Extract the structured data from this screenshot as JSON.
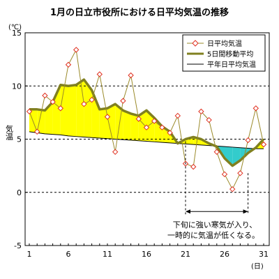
{
  "chart_data": {
    "type": "line",
    "title": "1月の日立市役所における日平均気温の推移",
    "unit_label": "(℃)",
    "ylabel": "気温",
    "xlabel": "(日)",
    "xlim": [
      1,
      31
    ],
    "ylim": [
      -5,
      15
    ],
    "x_ticks": [
      1,
      6,
      11,
      16,
      21,
      26,
      31
    ],
    "y_ticks": [
      -5,
      0,
      5,
      10,
      15
    ],
    "dashed_gridlines": [
      10,
      5,
      0
    ],
    "x": [
      1,
      2,
      3,
      4,
      5,
      6,
      7,
      8,
      9,
      10,
      11,
      12,
      13,
      14,
      15,
      16,
      17,
      18,
      19,
      20,
      21,
      22,
      23,
      24,
      25,
      26,
      27,
      28,
      29,
      30,
      31
    ],
    "series": [
      {
        "name": "日平均気温",
        "color": "#9a8a2a",
        "marker": "diamond",
        "marker_color": "#e03020",
        "values": [
          7.6,
          5.7,
          9.1,
          8.5,
          7.9,
          12.0,
          13.4,
          8.3,
          8.7,
          11.1,
          7.1,
          3.8,
          8.6,
          11.0,
          6.9,
          6.1,
          6.7,
          6.1,
          5.6,
          7.2,
          2.7,
          2.4,
          7.6,
          6.8,
          3.8,
          1.7,
          0.3,
          1.8,
          4.9,
          7.9,
          4.5
        ]
      },
      {
        "name": "5日間移動平均",
        "color": "#808020",
        "values": [
          7.8,
          7.8,
          7.7,
          8.5,
          10.1,
          10.0,
          10.1,
          10.6,
          9.6,
          7.8,
          7.9,
          8.3,
          7.7,
          7.4,
          7.2,
          7.7,
          7.0,
          6.2,
          5.7,
          4.6,
          5.0,
          5.2,
          5.0,
          4.6,
          4.3,
          3.2,
          2.5,
          3.0,
          3.7,
          4.2,
          5.0
        ]
      },
      {
        "name": "平年日平均気温",
        "color": "#000000",
        "values": [
          5.7,
          5.6,
          5.5,
          5.45,
          5.4,
          5.3,
          5.25,
          5.2,
          5.15,
          5.1,
          5.05,
          5.0,
          4.95,
          4.9,
          4.85,
          4.8,
          4.75,
          4.7,
          4.65,
          4.6,
          4.55,
          4.5,
          4.45,
          4.4,
          4.35,
          4.3,
          4.25,
          4.2,
          4.15,
          4.1,
          4.1
        ]
      }
    ],
    "fill_above_color": "#ffff00",
    "fill_below_color": "#33cccc",
    "annotation": {
      "lines": [
        "下旬に強い寒気が入り、",
        "一時的に気温が低くなる。"
      ],
      "range": [
        21,
        29
      ],
      "bracket_y": -1.8
    }
  }
}
